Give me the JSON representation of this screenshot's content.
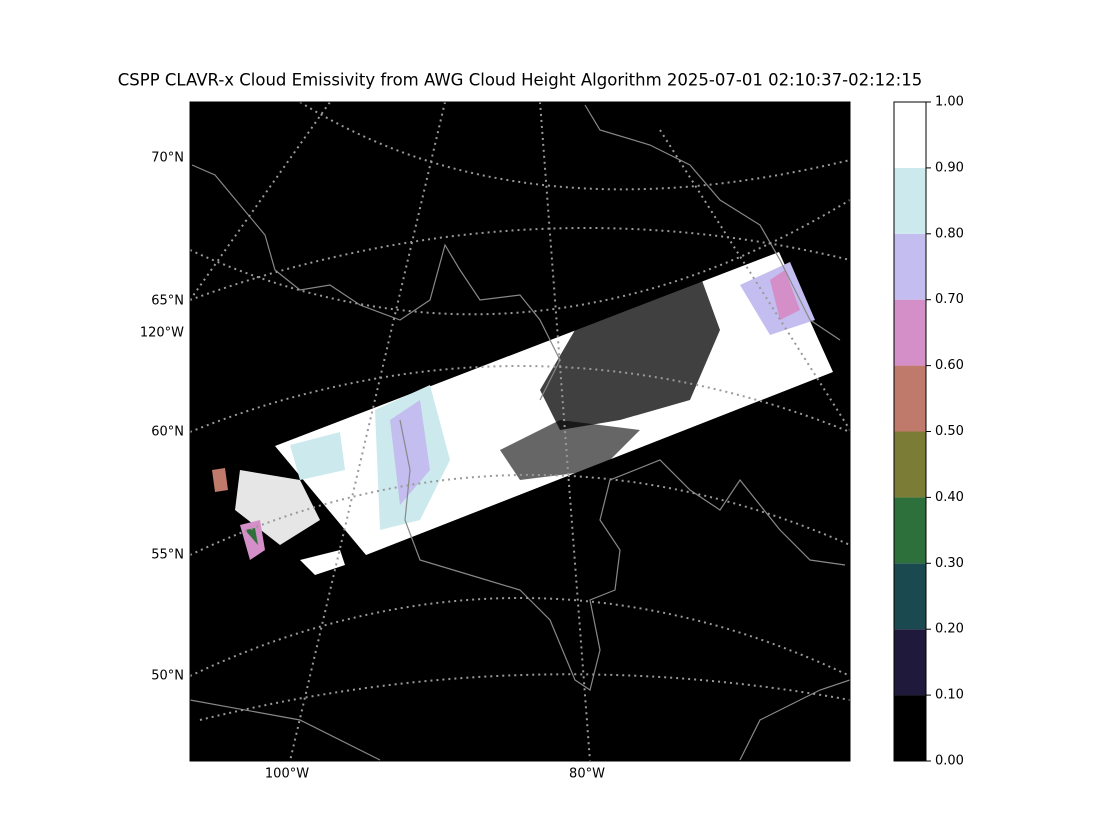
{
  "title": "CSPP CLAVR-x Cloud Emissivity from AWG Cloud Height Algorithm 2025-07-01 02:10:37-02:12:15",
  "map": {
    "lat_labels": [
      "70°N",
      "65°N",
      "120°W",
      "60°N",
      "55°N",
      "50°N"
    ],
    "lon_labels": [
      "100°W",
      "80°W"
    ]
  },
  "colorbar": {
    "lim": [
      0,
      1
    ],
    "ticks": [
      {
        "value": 0,
        "label": "0.00"
      },
      {
        "value": 0.1,
        "label": "0.10"
      },
      {
        "value": 0.2,
        "label": "0.20"
      },
      {
        "value": 0.3,
        "label": "0.30"
      },
      {
        "value": 0.4,
        "label": "0.40"
      },
      {
        "value": 0.5,
        "label": "0.50"
      },
      {
        "value": 0.6,
        "label": "0.60"
      },
      {
        "value": 0.7,
        "label": "0.70"
      },
      {
        "value": 0.8,
        "label": "0.80"
      },
      {
        "value": 0.9,
        "label": "0.90"
      },
      {
        "value": 1,
        "label": "1.00"
      }
    ],
    "colors": [
      "#000000",
      "#1f1a3b",
      "#1a4a4f",
      "#2e703c",
      "#7b7d36",
      "#c07a6b",
      "#d48fc8",
      "#c3bdf0",
      "#cceaed",
      "#ffffff"
    ]
  }
}
